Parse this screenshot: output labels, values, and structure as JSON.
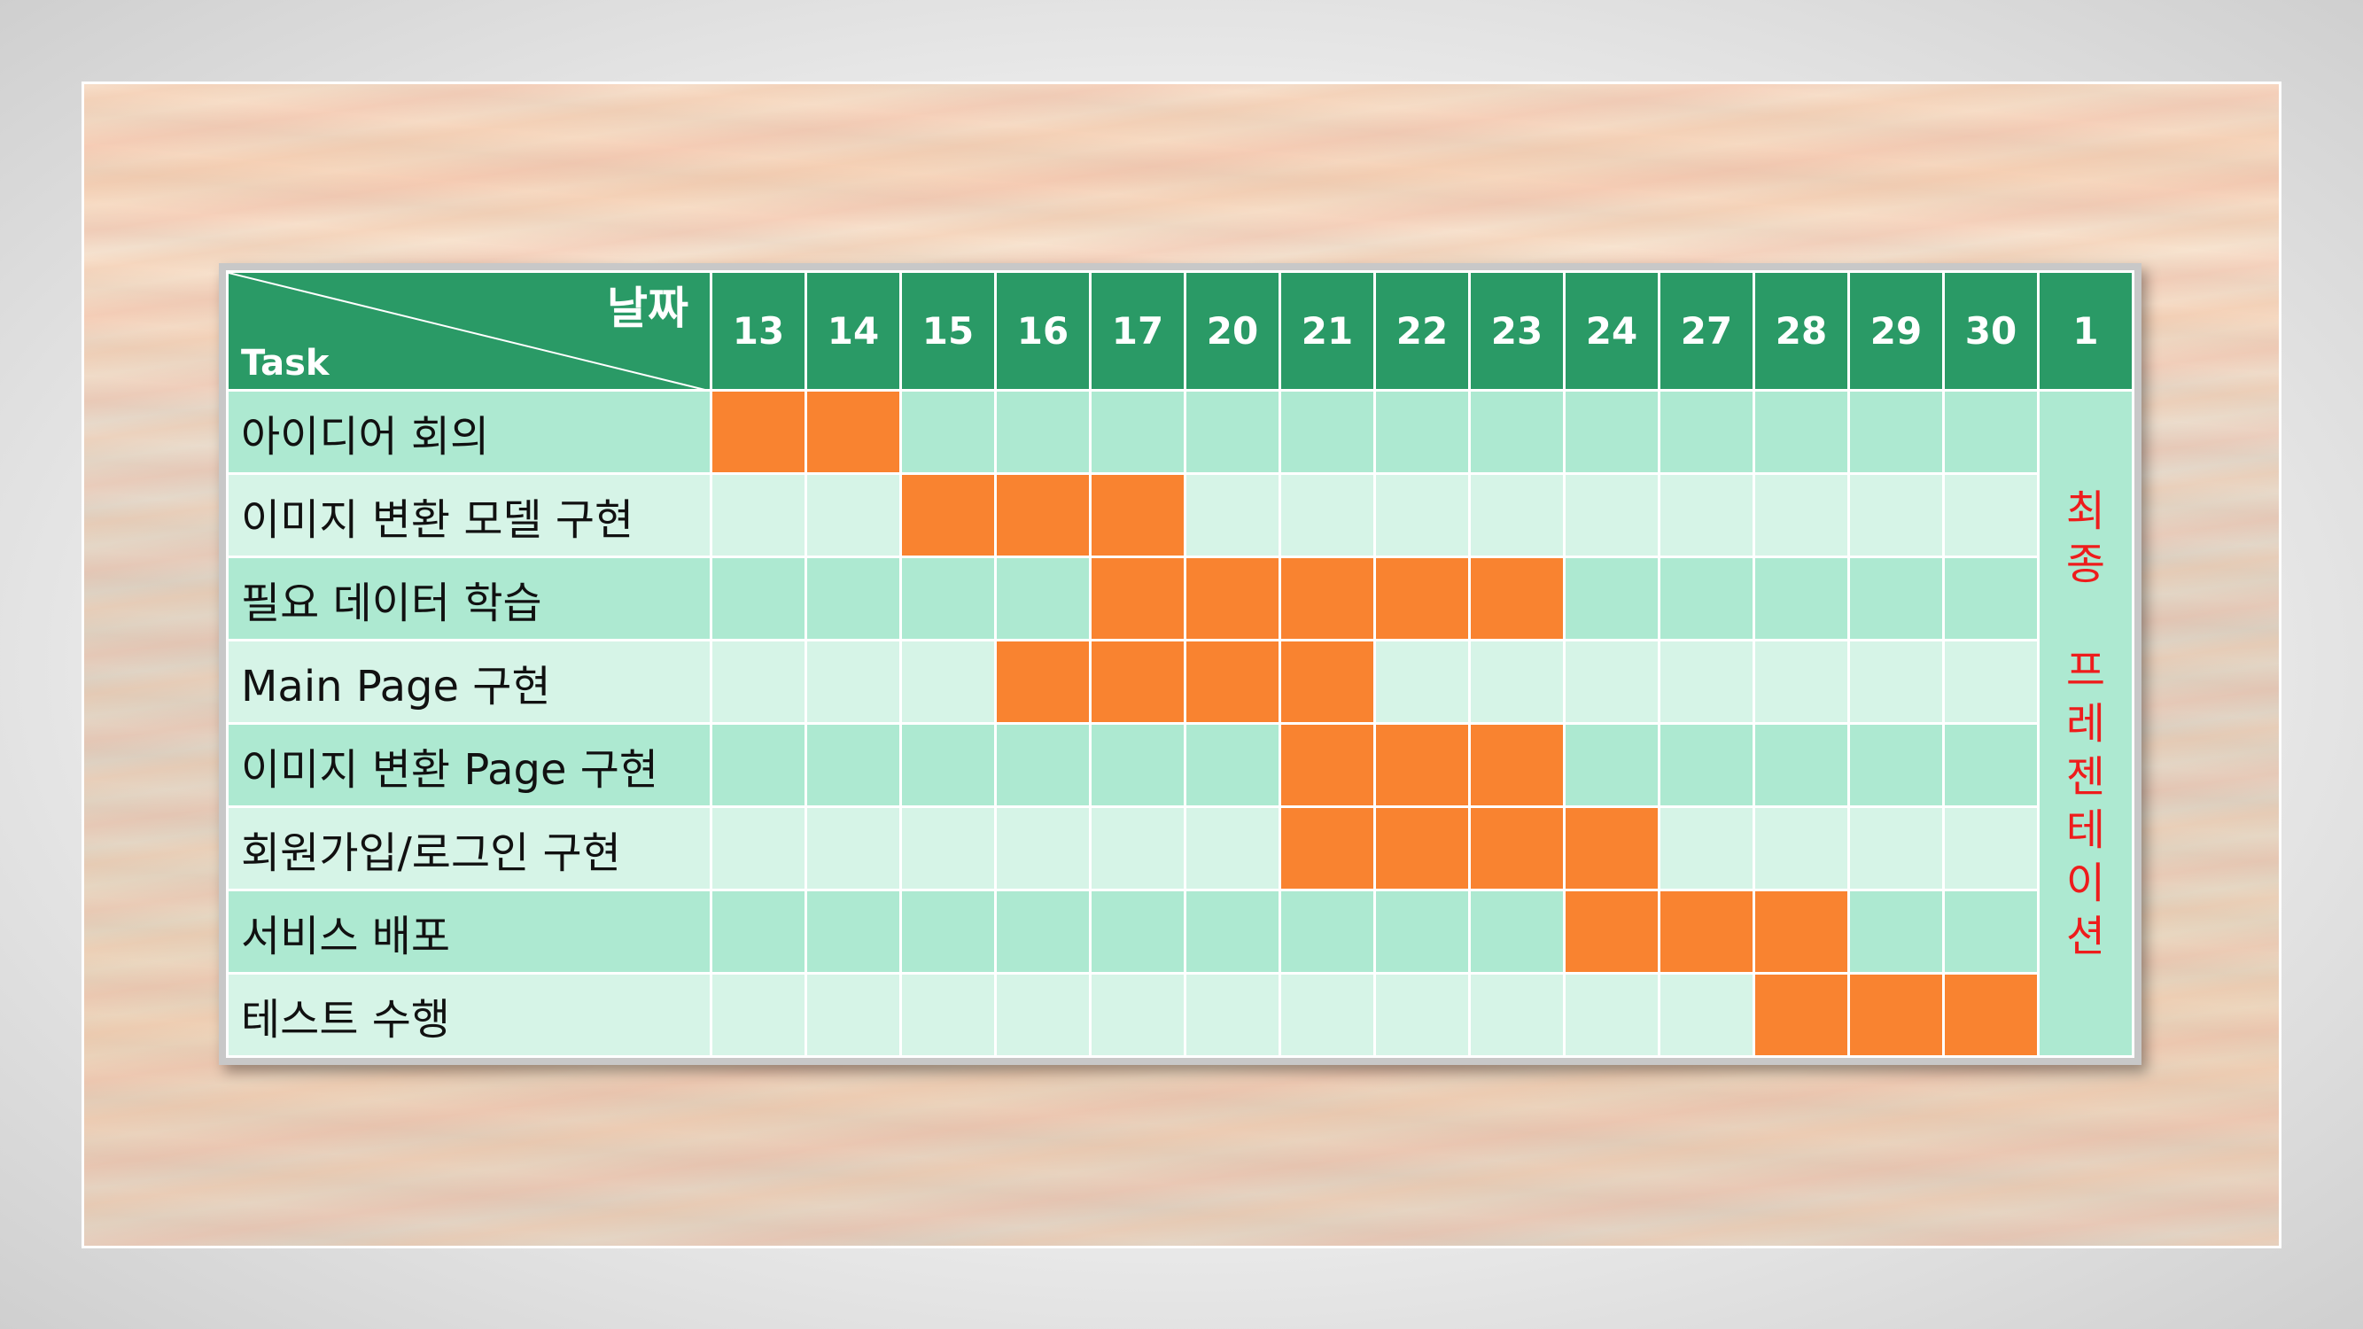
{
  "chart_data": {
    "type": "table",
    "header": {
      "date_label": "날짜",
      "task_label": "Task",
      "dates": [
        "13",
        "14",
        "15",
        "16",
        "17",
        "20",
        "21",
        "22",
        "23",
        "24",
        "27",
        "28",
        "29",
        "30",
        "1"
      ]
    },
    "tasks": [
      {
        "name": "아이디어 회의",
        "active": [
          "13",
          "14"
        ]
      },
      {
        "name": "이미지 변환 모델 구현",
        "active": [
          "15",
          "16",
          "17"
        ]
      },
      {
        "name": "필요 데이터 학습",
        "active": [
          "17",
          "20",
          "21",
          "22",
          "23"
        ]
      },
      {
        "name": "Main Page 구현",
        "active": [
          "16",
          "17",
          "20",
          "21"
        ]
      },
      {
        "name": "이미지 변환 Page 구현",
        "active": [
          "21",
          "22",
          "23"
        ]
      },
      {
        "name": "회원가입/로그인 구현",
        "active": [
          "21",
          "22",
          "23",
          "24"
        ]
      },
      {
        "name": "서비스 배포",
        "active": [
          "24",
          "27",
          "28"
        ]
      },
      {
        "name": "테스트 수행",
        "active": [
          "28",
          "29",
          "30"
        ]
      }
    ],
    "final_column": {
      "date": "1",
      "label_line1": "최종",
      "label_line2": "프레젠테이션"
    },
    "colors": {
      "header": "#2a9a66",
      "row_dark": "#ade9d1",
      "row_light": "#d6f4e7",
      "active": "#f98330",
      "final_text": "#ee1c1c"
    }
  }
}
